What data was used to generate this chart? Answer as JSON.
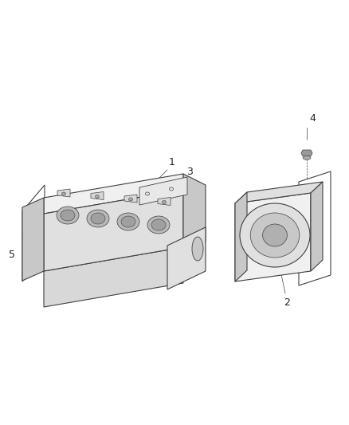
{
  "background_color": "#ffffff",
  "fig_width": 4.38,
  "fig_height": 5.33,
  "dpi": 100,
  "line_color": "#404040",
  "label_color": "#222222",
  "label_fontsize": 9,
  "thin_lw": 0.6,
  "med_lw": 0.8,
  "callout_lw": 0.5
}
